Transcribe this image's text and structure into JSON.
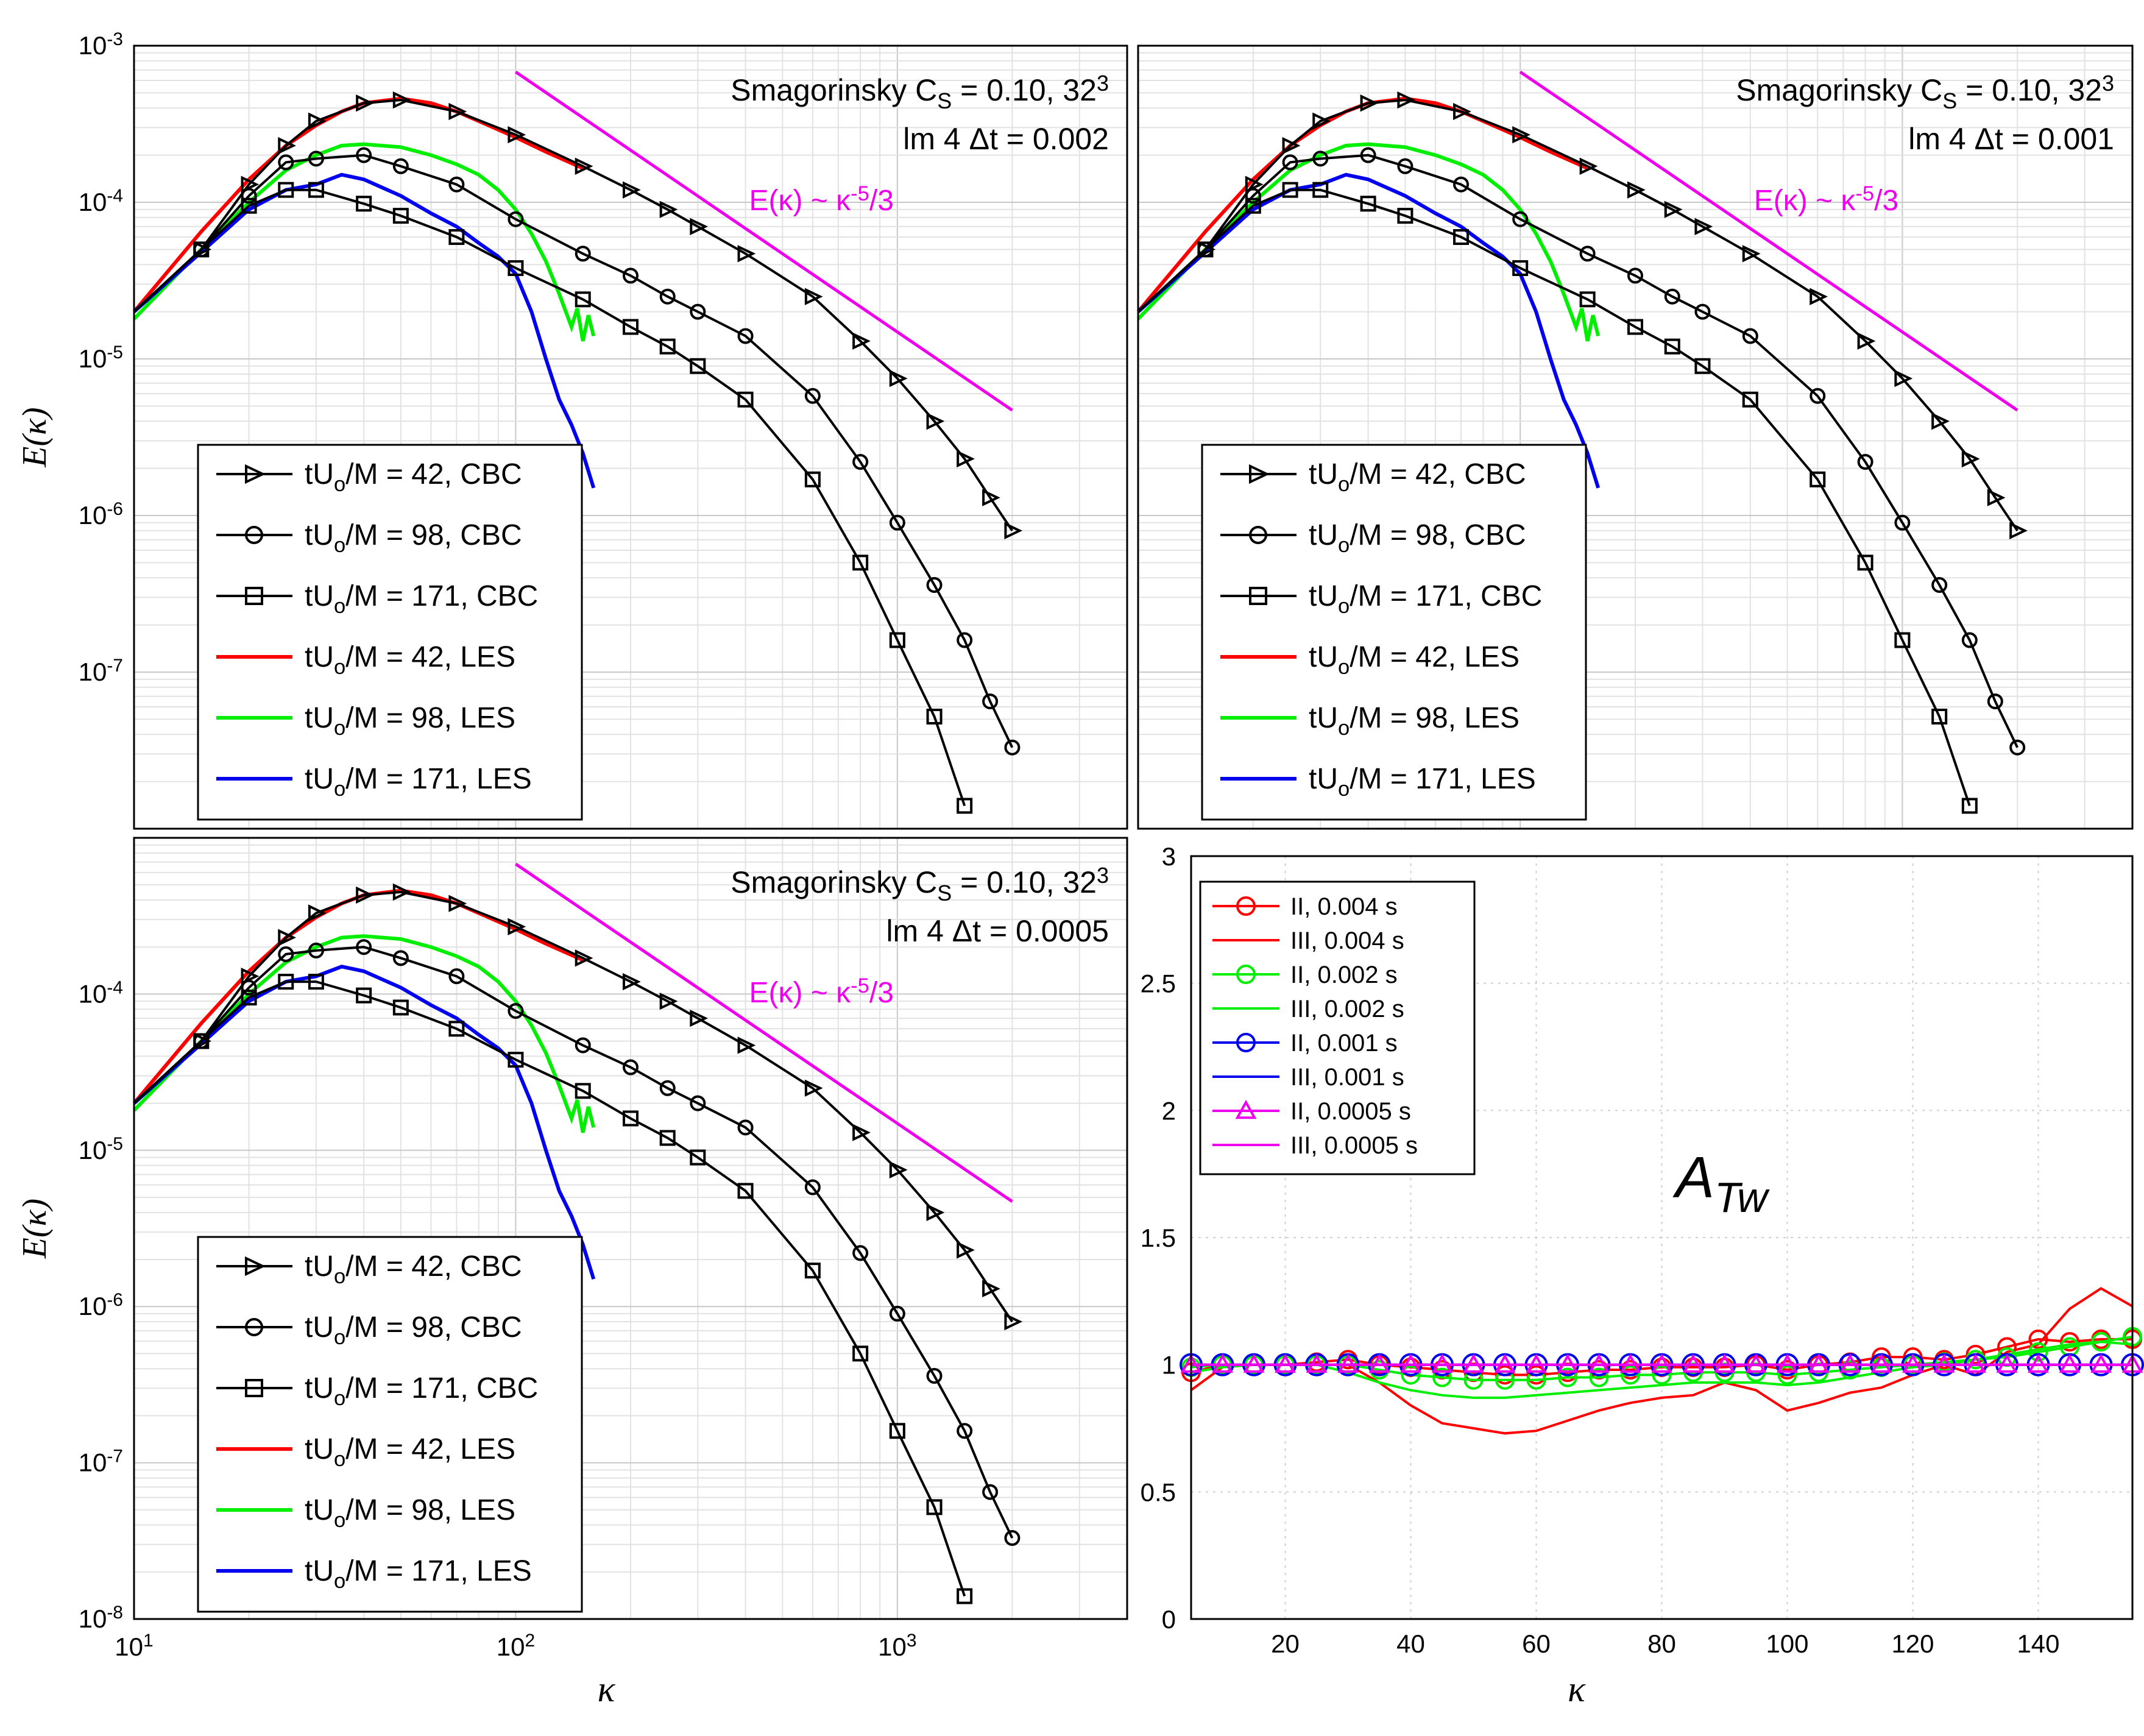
{
  "chart_data": [
    {
      "type": "line",
      "panel": "top-left",
      "xscale": "log",
      "yscale": "log",
      "xlim": [
        10,
        4000
      ],
      "ylim": [
        1e-08,
        0.001
      ],
      "ylabel": "E(κ)",
      "yticks": [
        "10^-3",
        "10^-4",
        "10^-5",
        "10^-6",
        "10^-7"
      ],
      "annotation_line1": "Smagorinsky C_S = 0.10, 32^3",
      "annotation_line2": "lm 4 Δt = 0.002",
      "slope_label": "E(κ) ~ κ^-5/3",
      "slope_line": {
        "x": [
          100,
          2000
        ],
        "y": [
          0.00068,
          4.7e-06
        ]
      },
      "legend_position": "bottom-left",
      "series": [
        {
          "name": "tU_o/M = 42, CBC",
          "color": "#000000",
          "marker": "triangle-right",
          "x": [
            10,
            15,
            20,
            25,
            30,
            40,
            50,
            70,
            100,
            150,
            200,
            250,
            300,
            400,
            600,
            800,
            1000,
            1250,
            1500,
            1750,
            2000
          ],
          "y": [
            2e-05,
            5e-05,
            0.00013,
            0.00023,
            0.00033,
            0.00043,
            0.00045,
            0.00038,
            0.00027,
            0.00017,
            0.00012,
            9e-05,
            7e-05,
            4.7e-05,
            2.5e-05,
            1.3e-05,
            7.5e-06,
            4e-06,
            2.3e-06,
            1.3e-06,
            8e-07
          ]
        },
        {
          "name": "tU_o/M = 98, CBC",
          "color": "#000000",
          "marker": "circle",
          "x": [
            10,
            15,
            20,
            25,
            30,
            40,
            50,
            70,
            100,
            150,
            200,
            250,
            300,
            400,
            600,
            800,
            1000,
            1250,
            1500,
            1750,
            2000
          ],
          "y": [
            2e-05,
            5e-05,
            0.00011,
            0.00018,
            0.00019,
            0.0002,
            0.00017,
            0.00013,
            7.8e-05,
            4.7e-05,
            3.4e-05,
            2.5e-05,
            2e-05,
            1.4e-05,
            5.8e-06,
            2.2e-06,
            9e-07,
            3.6e-07,
            1.6e-07,
            6.5e-08,
            3.3e-08
          ]
        },
        {
          "name": "tU_o/M = 171, CBC",
          "color": "#000000",
          "marker": "square",
          "x": [
            10,
            15,
            20,
            25,
            30,
            40,
            50,
            70,
            100,
            150,
            200,
            250,
            300,
            400,
            600,
            800,
            1000,
            1250,
            1500
          ],
          "y": [
            2e-05,
            5e-05,
            9.5e-05,
            0.00012,
            0.00012,
            9.8e-05,
            8.2e-05,
            6e-05,
            3.8e-05,
            2.4e-05,
            1.6e-05,
            1.2e-05,
            9e-06,
            5.5e-06,
            1.7e-06,
            5e-07,
            1.6e-07,
            5.2e-08,
            1.4e-08
          ]
        },
        {
          "name": "tU_o/M = 42, LES",
          "color": "#ff0000",
          "marker": "none",
          "x": [
            10,
            15,
            20,
            25,
            30,
            35,
            40,
            50,
            60,
            70,
            80,
            100,
            120,
            150
          ],
          "y": [
            2e-05,
            6.5e-05,
            0.00014,
            0.00023,
            0.00031,
            0.00038,
            0.00043,
            0.00046,
            0.00043,
            0.00038,
            0.00033,
            0.00026,
            0.00021,
            0.000165
          ]
        },
        {
          "name": "tU_o/M = 98, LES",
          "color": "#00ee00",
          "marker": "none",
          "x": [
            10,
            15,
            20,
            25,
            30,
            35,
            40,
            50,
            60,
            70,
            80,
            90,
            100,
            110,
            120,
            130,
            140,
            145,
            150,
            155,
            160
          ],
          "y": [
            1.8e-05,
            5e-05,
            0.0001,
            0.00016,
            0.0002,
            0.00023,
            0.000235,
            0.000225,
            0.0002,
            0.000175,
            0.00015,
            0.00012,
            9e-05,
            6.3e-05,
            4.2e-05,
            2.6e-05,
            1.6e-05,
            2.1e-05,
            1.3e-05,
            1.9e-05,
            1.4e-05
          ]
        },
        {
          "name": "tU_o/M = 171, LES",
          "color": "#0000ee",
          "marker": "none",
          "x": [
            10,
            15,
            20,
            25,
            30,
            35,
            40,
            50,
            60,
            70,
            80,
            90,
            100,
            110,
            120,
            130,
            140,
            150,
            160
          ],
          "y": [
            2e-05,
            4.8e-05,
            9e-05,
            0.00012,
            0.00013,
            0.00015,
            0.00014,
            0.00011,
            8.5e-05,
            7e-05,
            5.5e-05,
            4.5e-05,
            3.5e-05,
            2e-05,
            1e-05,
            5.5e-06,
            3.8e-06,
            2.5e-06,
            1.5e-06
          ]
        }
      ]
    },
    {
      "type": "line",
      "panel": "top-right",
      "xscale": "log",
      "yscale": "log",
      "xlim": [
        10,
        4000
      ],
      "ylim": [
        1e-08,
        0.001
      ],
      "annotation_line1": "Smagorinsky C_S = 0.10, 32^3",
      "annotation_line2": "lm 4 Δt = 0.001",
      "slope_label": "E(κ) ~ κ^-5/3",
      "slope_line": {
        "x": [
          100,
          2000
        ],
        "y": [
          0.00068,
          4.7e-06
        ]
      },
      "legend_position": "bottom-left",
      "series_same_as_panel": "top-left",
      "legend_labels": [
        "tU_o/M = 42, CBC",
        "tU_o/M = 98, CBC",
        "tU_o/M = 171, CBC",
        "tU_o/M = 42, LES",
        "tU_o/M = 98, LES",
        "tU_o/M = 171, LES"
      ]
    },
    {
      "type": "line",
      "panel": "bottom-left",
      "xscale": "log",
      "yscale": "log",
      "xlim": [
        10,
        4000
      ],
      "ylim": [
        1e-08,
        0.001
      ],
      "xlabel": "κ",
      "ylabel": "E(κ)",
      "xticks": [
        "10^1",
        "10^2",
        "10^3"
      ],
      "yticks": [
        "10^-4",
        "10^-5",
        "10^-6",
        "10^-7",
        "10^-8"
      ],
      "annotation_line1": "Smagorinsky C_S = 0.10, 32^3",
      "annotation_line2": "lm 4 Δt = 0.0005",
      "slope_label": "E(κ) ~ κ^-5/3",
      "slope_line": {
        "x": [
          100,
          2000
        ],
        "y": [
          0.00068,
          4.7e-06
        ]
      },
      "legend_position": "bottom-left",
      "series_same_as_panel": "top-left",
      "legend_labels": [
        "tU_o/M = 42, CBC",
        "tU_o/M = 98, CBC",
        "tU_o/M = 171, CBC",
        "tU_o/M = 42, LES",
        "tU_o/M = 98, LES",
        "tU_o/M = 171, LES"
      ]
    },
    {
      "type": "line",
      "panel": "bottom-right",
      "xscale": "linear",
      "yscale": "linear",
      "xlim": [
        5,
        155
      ],
      "ylim": [
        0,
        3
      ],
      "xlabel": "κ",
      "xticks": [
        "20",
        "40",
        "60",
        "80",
        "100",
        "120",
        "140"
      ],
      "yticks": [
        "0",
        "0.5",
        "1",
        "1.5",
        "2",
        "2.5",
        "3"
      ],
      "title": "A_Tw",
      "legend_position": "top-left",
      "series": [
        {
          "name": "II, 0.004 s",
          "color": "#ff0000",
          "marker": "circle",
          "x": [
            5,
            10,
            15,
            20,
            25,
            30,
            35,
            40,
            45,
            50,
            55,
            60,
            65,
            70,
            75,
            80,
            85,
            90,
            95,
            100,
            105,
            110,
            115,
            120,
            125,
            130,
            135,
            140,
            145,
            150,
            155
          ],
          "y": [
            0.97,
            1.0,
            1.0,
            1.0,
            1.01,
            1.02,
            1.0,
            0.99,
            0.98,
            0.97,
            0.96,
            0.96,
            0.97,
            0.98,
            0.98,
            0.99,
            0.99,
            0.99,
            1.0,
            0.98,
            1.0,
            1.01,
            1.03,
            1.03,
            1.02,
            1.04,
            1.07,
            1.1,
            1.09,
            1.1,
            1.1
          ]
        },
        {
          "name": "III, 0.004 s",
          "color": "#ff0000",
          "marker": "none",
          "x": [
            5,
            10,
            15,
            20,
            25,
            30,
            35,
            40,
            45,
            50,
            55,
            60,
            65,
            70,
            75,
            80,
            85,
            90,
            95,
            100,
            105,
            110,
            115,
            120,
            125,
            130,
            135,
            140,
            145,
            150,
            155
          ],
          "y": [
            0.9,
            0.99,
            1.0,
            1.0,
            1.0,
            1.0,
            0.93,
            0.84,
            0.77,
            0.75,
            0.73,
            0.74,
            0.78,
            0.82,
            0.85,
            0.87,
            0.88,
            0.93,
            0.9,
            0.82,
            0.85,
            0.89,
            0.91,
            0.96,
            1.0,
            0.96,
            1.05,
            1.08,
            1.22,
            1.3,
            1.23
          ]
        },
        {
          "name": "II, 0.002 s",
          "color": "#00ee00",
          "marker": "circle",
          "x": [
            5,
            10,
            15,
            20,
            25,
            30,
            35,
            40,
            45,
            50,
            55,
            60,
            65,
            70,
            75,
            80,
            85,
            90,
            95,
            100,
            105,
            110,
            115,
            120,
            125,
            130,
            135,
            140,
            145,
            150,
            155
          ],
          "y": [
            0.99,
            1.0,
            1.0,
            1.0,
            1.0,
            1.0,
            0.98,
            0.96,
            0.95,
            0.94,
            0.94,
            0.94,
            0.95,
            0.95,
            0.96,
            0.96,
            0.97,
            0.97,
            0.97,
            0.96,
            0.97,
            0.98,
            0.99,
            1.0,
            1.01,
            1.02,
            1.03,
            1.05,
            1.07,
            1.09,
            1.11
          ]
        },
        {
          "name": "III, 0.002 s",
          "color": "#00ee00",
          "marker": "none",
          "x": [
            5,
            10,
            15,
            20,
            25,
            30,
            35,
            40,
            45,
            50,
            55,
            60,
            65,
            70,
            75,
            80,
            85,
            90,
            95,
            100,
            105,
            110,
            115,
            120,
            125,
            130,
            135,
            140,
            145,
            150,
            155
          ],
          "y": [
            0.97,
            0.99,
            1.0,
            1.0,
            1.0,
            0.97,
            0.93,
            0.9,
            0.88,
            0.87,
            0.87,
            0.88,
            0.89,
            0.9,
            0.91,
            0.92,
            0.93,
            0.93,
            0.93,
            0.92,
            0.93,
            0.95,
            0.97,
            0.99,
            1.0,
            1.02,
            1.04,
            1.06,
            1.08,
            1.09,
            1.08
          ]
        },
        {
          "name": "II, 0.001 s",
          "color": "#0000ee",
          "marker": "circle",
          "x": [
            5,
            10,
            15,
            20,
            25,
            30,
            35,
            40,
            45,
            50,
            55,
            60,
            65,
            70,
            75,
            80,
            85,
            90,
            95,
            100,
            105,
            110,
            115,
            120,
            125,
            130,
            135,
            140,
            145,
            150,
            155
          ],
          "y": [
            1.0,
            1.0,
            1.0,
            1.0,
            1.0,
            1.0,
            1.0,
            1.0,
            1.0,
            1.0,
            1.0,
            1.0,
            1.0,
            1.0,
            1.0,
            1.0,
            1.0,
            1.0,
            1.0,
            1.0,
            1.0,
            1.0,
            1.0,
            1.0,
            1.0,
            1.0,
            1.0,
            1.0,
            1.0,
            1.0,
            1.0
          ]
        },
        {
          "name": "III, 0.001 s",
          "color": "#0000ee",
          "marker": "none",
          "x": [
            5,
            155
          ],
          "y": [
            1.0,
            1.0
          ]
        },
        {
          "name": "II, 0.0005 s",
          "color": "#ee00ee",
          "marker": "triangle",
          "x": [
            5,
            10,
            15,
            20,
            25,
            30,
            35,
            40,
            45,
            50,
            55,
            60,
            65,
            70,
            75,
            80,
            85,
            90,
            95,
            100,
            105,
            110,
            115,
            120,
            125,
            130,
            135,
            140,
            145,
            150,
            155
          ],
          "y": [
            1.0,
            1.0,
            1.0,
            1.0,
            1.0,
            1.0,
            1.0,
            1.0,
            1.0,
            1.0,
            1.0,
            1.0,
            1.0,
            1.0,
            1.0,
            1.0,
            1.0,
            1.0,
            1.0,
            1.0,
            1.0,
            1.0,
            1.0,
            1.0,
            1.0,
            1.0,
            1.0,
            1.0,
            1.0,
            1.0,
            1.0
          ]
        },
        {
          "name": "III, 0.0005 s",
          "color": "#ee00ee",
          "marker": "none",
          "x": [
            5,
            155
          ],
          "y": [
            1.0,
            1.0
          ]
        }
      ]
    }
  ]
}
